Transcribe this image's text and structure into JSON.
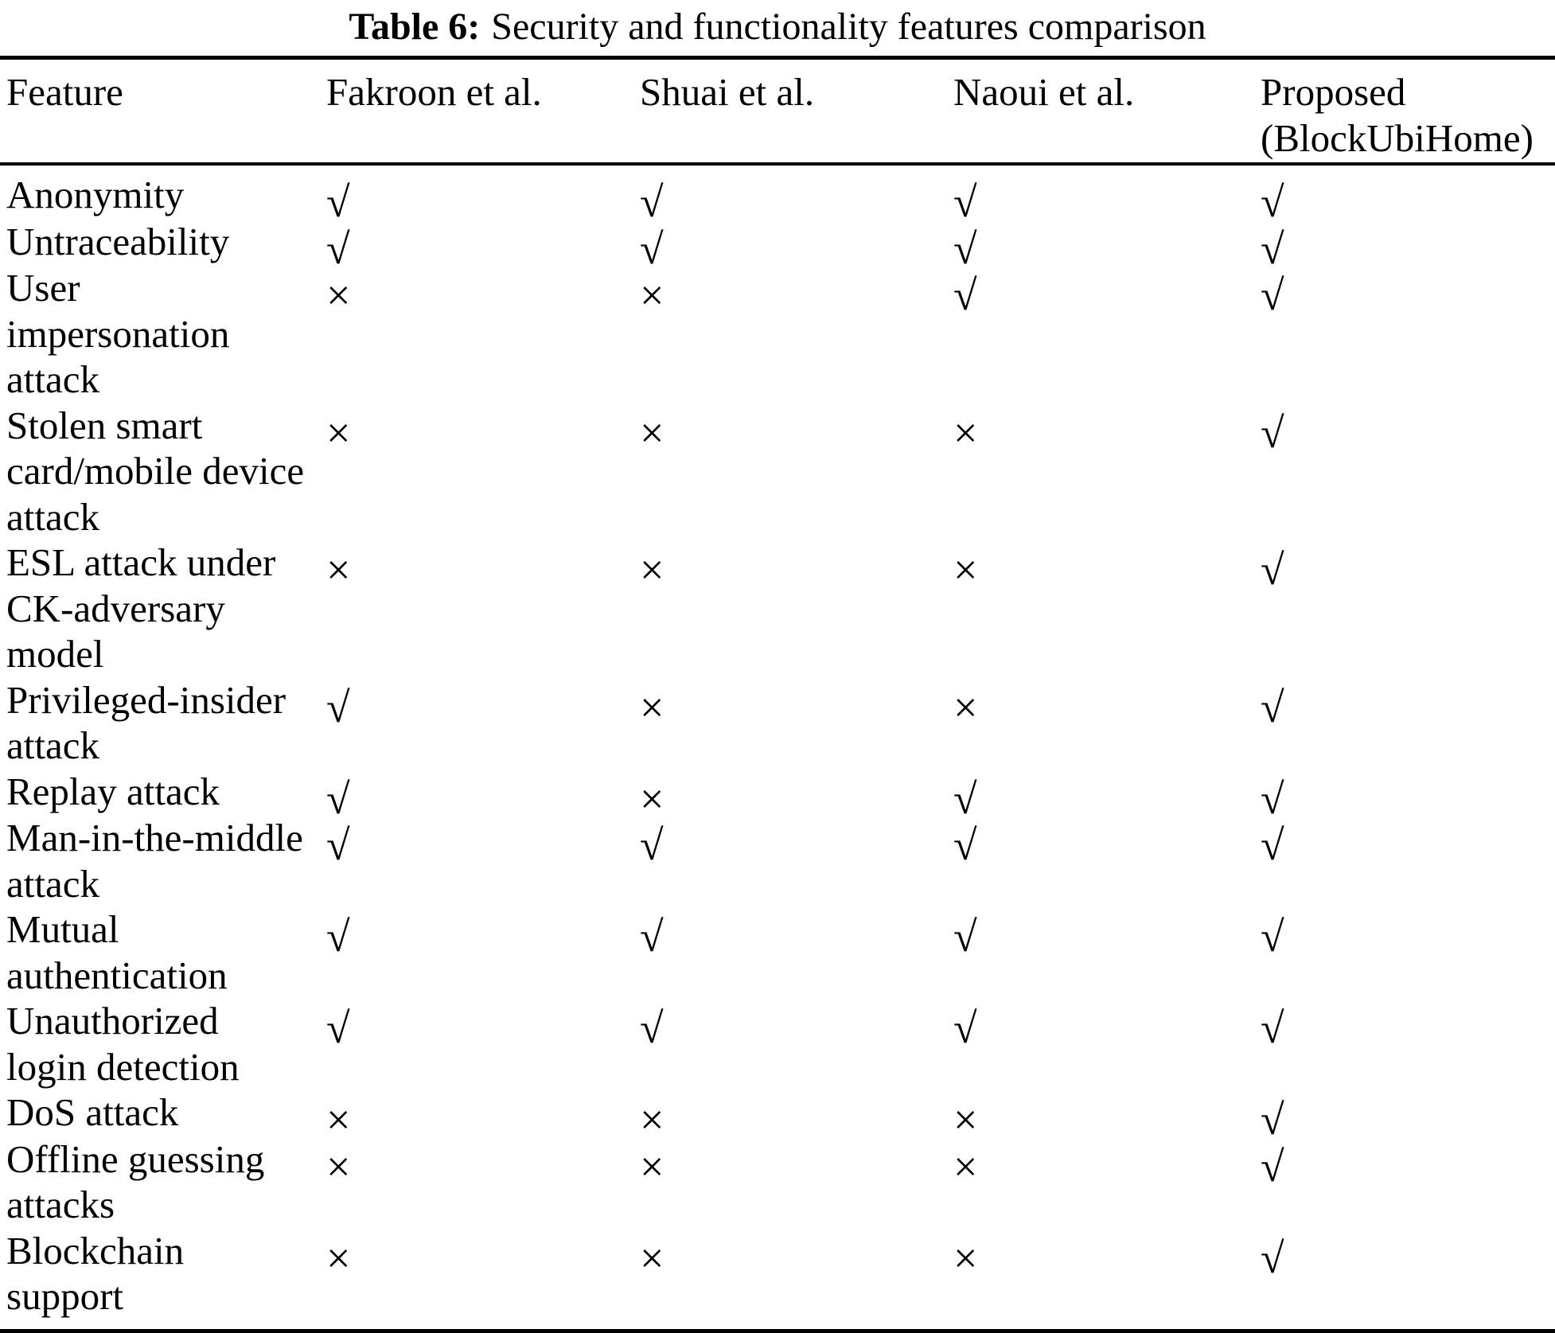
{
  "caption": {
    "label": "Table 6:",
    "text": "Security and functionality features comparison"
  },
  "table": {
    "columns": [
      "Feature",
      "Fakroon et al.",
      "Shuai et al.",
      "Naoui et al.",
      "Proposed\n(BlockUbiHome)"
    ],
    "rows": [
      {
        "feature": "Anonymity",
        "marks": [
          "√",
          "√",
          "√",
          "√"
        ]
      },
      {
        "feature": "Untraceability",
        "marks": [
          "√",
          "√",
          "√",
          "√"
        ]
      },
      {
        "feature": "User\nimpersonation\nattack",
        "marks": [
          "×",
          "×",
          "√",
          "√"
        ]
      },
      {
        "feature": "Stolen smart\ncard/mobile device\nattack",
        "marks": [
          "×",
          "×",
          "×",
          "√"
        ]
      },
      {
        "feature": "ESL attack under\nCK-adversary\nmodel",
        "marks": [
          "×",
          "×",
          "×",
          "√"
        ]
      },
      {
        "feature": "Privileged-insider\nattack",
        "marks": [
          "√",
          "×",
          "×",
          "√"
        ]
      },
      {
        "feature": "Replay attack",
        "marks": [
          "√",
          "×",
          "√",
          "√"
        ]
      },
      {
        "feature": "Man-in-the-middle\nattack",
        "marks": [
          "√",
          "√",
          "√",
          "√"
        ]
      },
      {
        "feature": "Mutual\nauthentication",
        "marks": [
          "√",
          "√",
          "√",
          "√"
        ]
      },
      {
        "feature": "Unauthorized\nlogin detection",
        "marks": [
          "√",
          "√",
          "√",
          "√"
        ]
      },
      {
        "feature": "DoS attack",
        "marks": [
          "×",
          "×",
          "×",
          "√"
        ]
      },
      {
        "feature": "Offline guessing\nattacks",
        "marks": [
          "×",
          "×",
          "×",
          "√"
        ]
      },
      {
        "feature": "Blockchain\nsupport",
        "marks": [
          "×",
          "×",
          "×",
          "√"
        ]
      }
    ]
  }
}
